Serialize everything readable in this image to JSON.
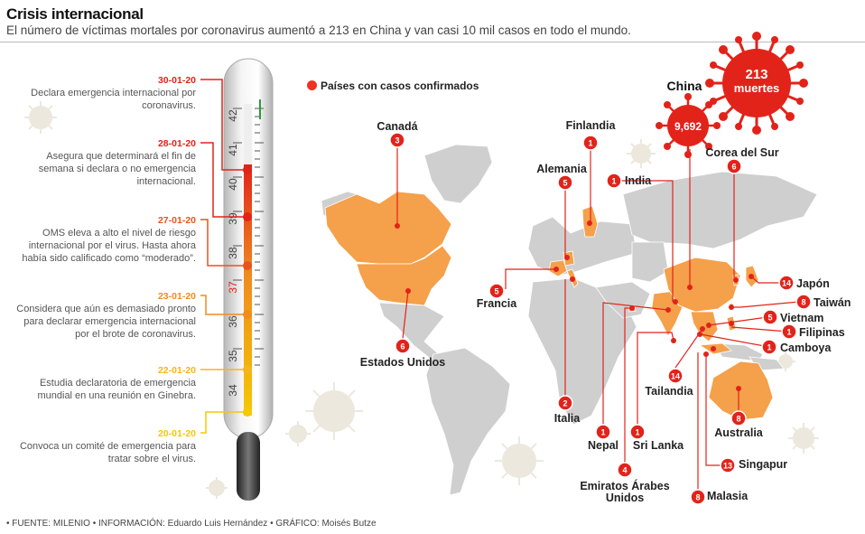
{
  "header": {
    "title": "Crisis internacional",
    "subtitle": "El número de víctimas mortales por coronavirus aumentó a 213 en China y van casi 10 mil casos en todo el mundo."
  },
  "legend": {
    "label": "Países con casos confirmados"
  },
  "china": {
    "name": "China",
    "cases": "9,692",
    "deaths_number": "213",
    "deaths_word": "muertes"
  },
  "timeline": [
    {
      "date": "30-01-20",
      "text": "Declara emergencia internacional por coronavirus.",
      "color": "#e2231a"
    },
    {
      "date": "28-01-20",
      "text": "Asegura que determinará el fin de semana si declara o no emergencia internacional.",
      "color": "#e2231a"
    },
    {
      "date": "27-01-20",
      "text": "OMS eleva a alto el nivel de riesgo internacional por el virus. Hasta ahora había sido calificado como “moderado”.",
      "color": "#e8541e"
    },
    {
      "date": "23-01-20",
      "text": "Considera que aún es demasiado pronto para declarar emergencia internacional por el brote de coronavirus.",
      "color": "#f08c1e"
    },
    {
      "date": "22-01-20",
      "text": "Estudia declaratoria de emergencia mundial en una reunión en Ginebra.",
      "color": "#f5b51e"
    },
    {
      "date": "20-01-20",
      "text": "Convoca un comité de emergencia para tratar sobre el virus.",
      "color": "#f5c800"
    }
  ],
  "thermometer": {
    "scale": [
      "42",
      "41",
      "40",
      "39",
      "38",
      "37",
      "36",
      "35",
      "34"
    ]
  },
  "countries": [
    {
      "name": "Canadá",
      "cases": "3"
    },
    {
      "name": "Estados Unidos",
      "cases": "6"
    },
    {
      "name": "Francia",
      "cases": "5"
    },
    {
      "name": "Alemania",
      "cases": "5"
    },
    {
      "name": "Finlandia",
      "cases": "1"
    },
    {
      "name": "Italia",
      "cases": "2"
    },
    {
      "name": "India",
      "cases": "1"
    },
    {
      "name": "Nepal",
      "cases": "1"
    },
    {
      "name": "Sri Lanka",
      "cases": "1"
    },
    {
      "name": "Emiratos Árabes Unidos",
      "cases": "4"
    },
    {
      "name": "Corea del Sur",
      "cases": "6"
    },
    {
      "name": "Japón",
      "cases": "14"
    },
    {
      "name": "Taiwán",
      "cases": "8"
    },
    {
      "name": "Vietnam",
      "cases": "5"
    },
    {
      "name": "Filipinas",
      "cases": "1"
    },
    {
      "name": "Camboya",
      "cases": "1"
    },
    {
      "name": "Tailandia",
      "cases": "14"
    },
    {
      "name": "Australia",
      "cases": "8"
    },
    {
      "name": "Singapur",
      "cases": "13"
    },
    {
      "name": "Malasia",
      "cases": "8"
    }
  ],
  "footer": "• FUENTE: MILENIO • INFORMACIÓN: Eduardo Luis Hernández • GRÁFICO: Moisés Butze",
  "colors": {
    "accent_red": "#e2231a",
    "affected_orange": "#f5a04a",
    "land_gray": "#cfcfcf"
  }
}
